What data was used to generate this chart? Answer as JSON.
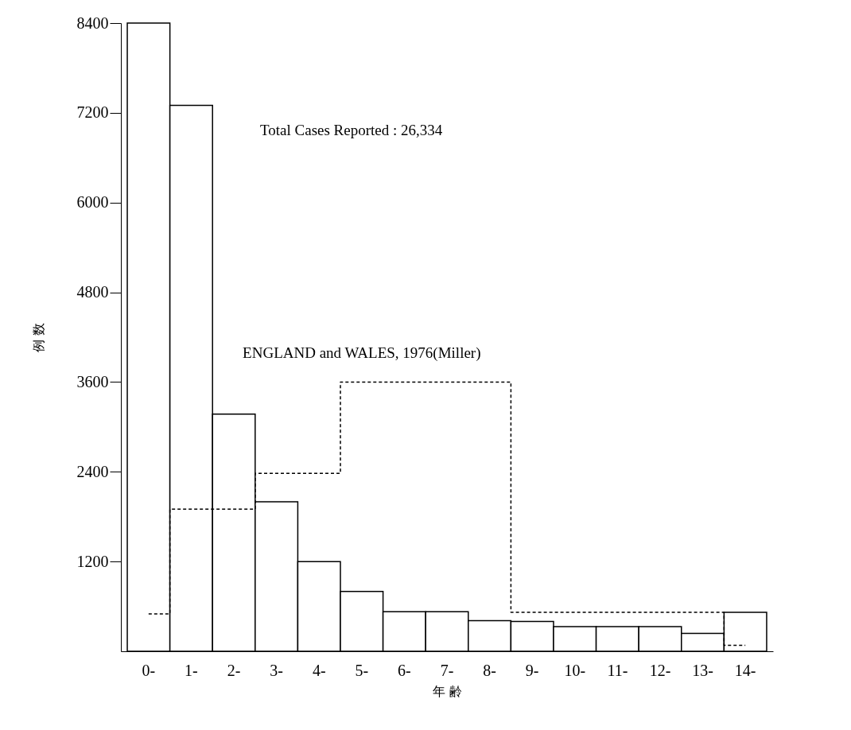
{
  "chart_data": {
    "type": "bar",
    "xlabel": "年 齢",
    "ylabel": "例 数",
    "categories": [
      "0-",
      "1-",
      "2-",
      "3-",
      "4-",
      "5-",
      "6-",
      "7-",
      "8-",
      "9-",
      "10-",
      "11-",
      "12-",
      "13-",
      "14-"
    ],
    "series": [
      {
        "color": "#000000",
        "values": [
          8400,
          7300,
          3170,
          2000,
          1200,
          800,
          530,
          530,
          410,
          400,
          330,
          330,
          330,
          240,
          520
        ]
      },
      {
        "type": "step",
        "name": "ENGLAND and WALES, 1976(Miller)",
        "color": "#000000",
        "line_style": "dashed",
        "values": [
          500,
          1900,
          1900,
          2380,
          2380,
          3600,
          3600,
          3600,
          3600,
          520,
          520,
          520,
          520,
          520,
          80
        ]
      }
    ],
    "ylim": [
      0,
      8400
    ],
    "yticks": [
      1200,
      2400,
      3600,
      4800,
      6000,
      7200,
      8400
    ],
    "annotations": [
      "Total Cases Reported : 26,334"
    ],
    "legend": false
  }
}
